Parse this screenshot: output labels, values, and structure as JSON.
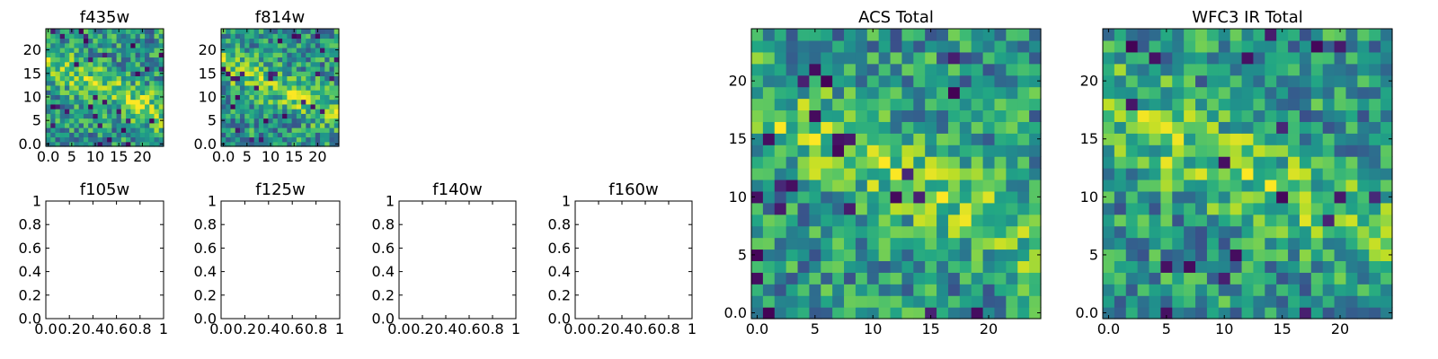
{
  "chart_data": [
    {
      "type": "heatmap",
      "title": "f435w",
      "grid_size": 25,
      "xticks": [
        0,
        5,
        10,
        15,
        20
      ],
      "yticks": [
        0,
        5,
        10,
        15,
        20
      ],
      "xlim": [
        -0.5,
        24.5
      ],
      "ylim": [
        -0.5,
        24.5
      ],
      "colormap": "viridis",
      "seed": 11
    },
    {
      "type": "heatmap",
      "title": "f814w",
      "grid_size": 25,
      "xticks": [
        0,
        5,
        10,
        15,
        20
      ],
      "yticks": [
        0,
        5,
        10,
        15,
        20
      ],
      "xlim": [
        -0.5,
        24.5
      ],
      "ylim": [
        -0.5,
        24.5
      ],
      "colormap": "viridis",
      "seed": 23
    },
    {
      "type": "heatmap",
      "title": "f105w",
      "empty": true,
      "xticks": [
        0.0,
        0.2,
        0.4,
        0.6,
        0.8,
        1.0
      ],
      "yticks": [
        0.0,
        0.2,
        0.4,
        0.6,
        0.8,
        1.0
      ],
      "xlim": [
        0,
        1
      ],
      "ylim": [
        0,
        1
      ]
    },
    {
      "type": "heatmap",
      "title": "f125w",
      "empty": true,
      "xticks": [
        0.0,
        0.2,
        0.4,
        0.6,
        0.8,
        1.0
      ],
      "yticks": [
        0.0,
        0.2,
        0.4,
        0.6,
        0.8,
        1.0
      ],
      "xlim": [
        0,
        1
      ],
      "ylim": [
        0,
        1
      ]
    },
    {
      "type": "heatmap",
      "title": "f140w",
      "empty": true,
      "xticks": [
        0.0,
        0.2,
        0.4,
        0.6,
        0.8,
        1.0
      ],
      "yticks": [
        0.0,
        0.2,
        0.4,
        0.6,
        0.8,
        1.0
      ],
      "xlim": [
        0,
        1
      ],
      "ylim": [
        0,
        1
      ]
    },
    {
      "type": "heatmap",
      "title": "f160w",
      "empty": true,
      "xticks": [
        0.0,
        0.2,
        0.4,
        0.6,
        0.8,
        1.0
      ],
      "yticks": [
        0.0,
        0.2,
        0.4,
        0.6,
        0.8,
        1.0
      ],
      "xlim": [
        0,
        1
      ],
      "ylim": [
        0,
        1
      ]
    },
    {
      "type": "heatmap",
      "title": "ACS Total",
      "grid_size": 25,
      "xticks": [
        0,
        5,
        10,
        15,
        20
      ],
      "yticks": [
        0,
        5,
        10,
        15,
        20
      ],
      "xlim": [
        -0.5,
        24.5
      ],
      "ylim": [
        -0.5,
        24.5
      ],
      "colormap": "viridis",
      "seed": 37
    },
    {
      "type": "heatmap",
      "title": "WFC3 IR Total",
      "grid_size": 25,
      "xticks": [
        0,
        5,
        10,
        15,
        20
      ],
      "yticks": [
        0,
        5,
        10,
        15,
        20
      ],
      "xlim": [
        -0.5,
        24.5
      ],
      "ylim": [
        -0.5,
        24.5
      ],
      "colormap": "viridis",
      "seed": 53
    }
  ]
}
